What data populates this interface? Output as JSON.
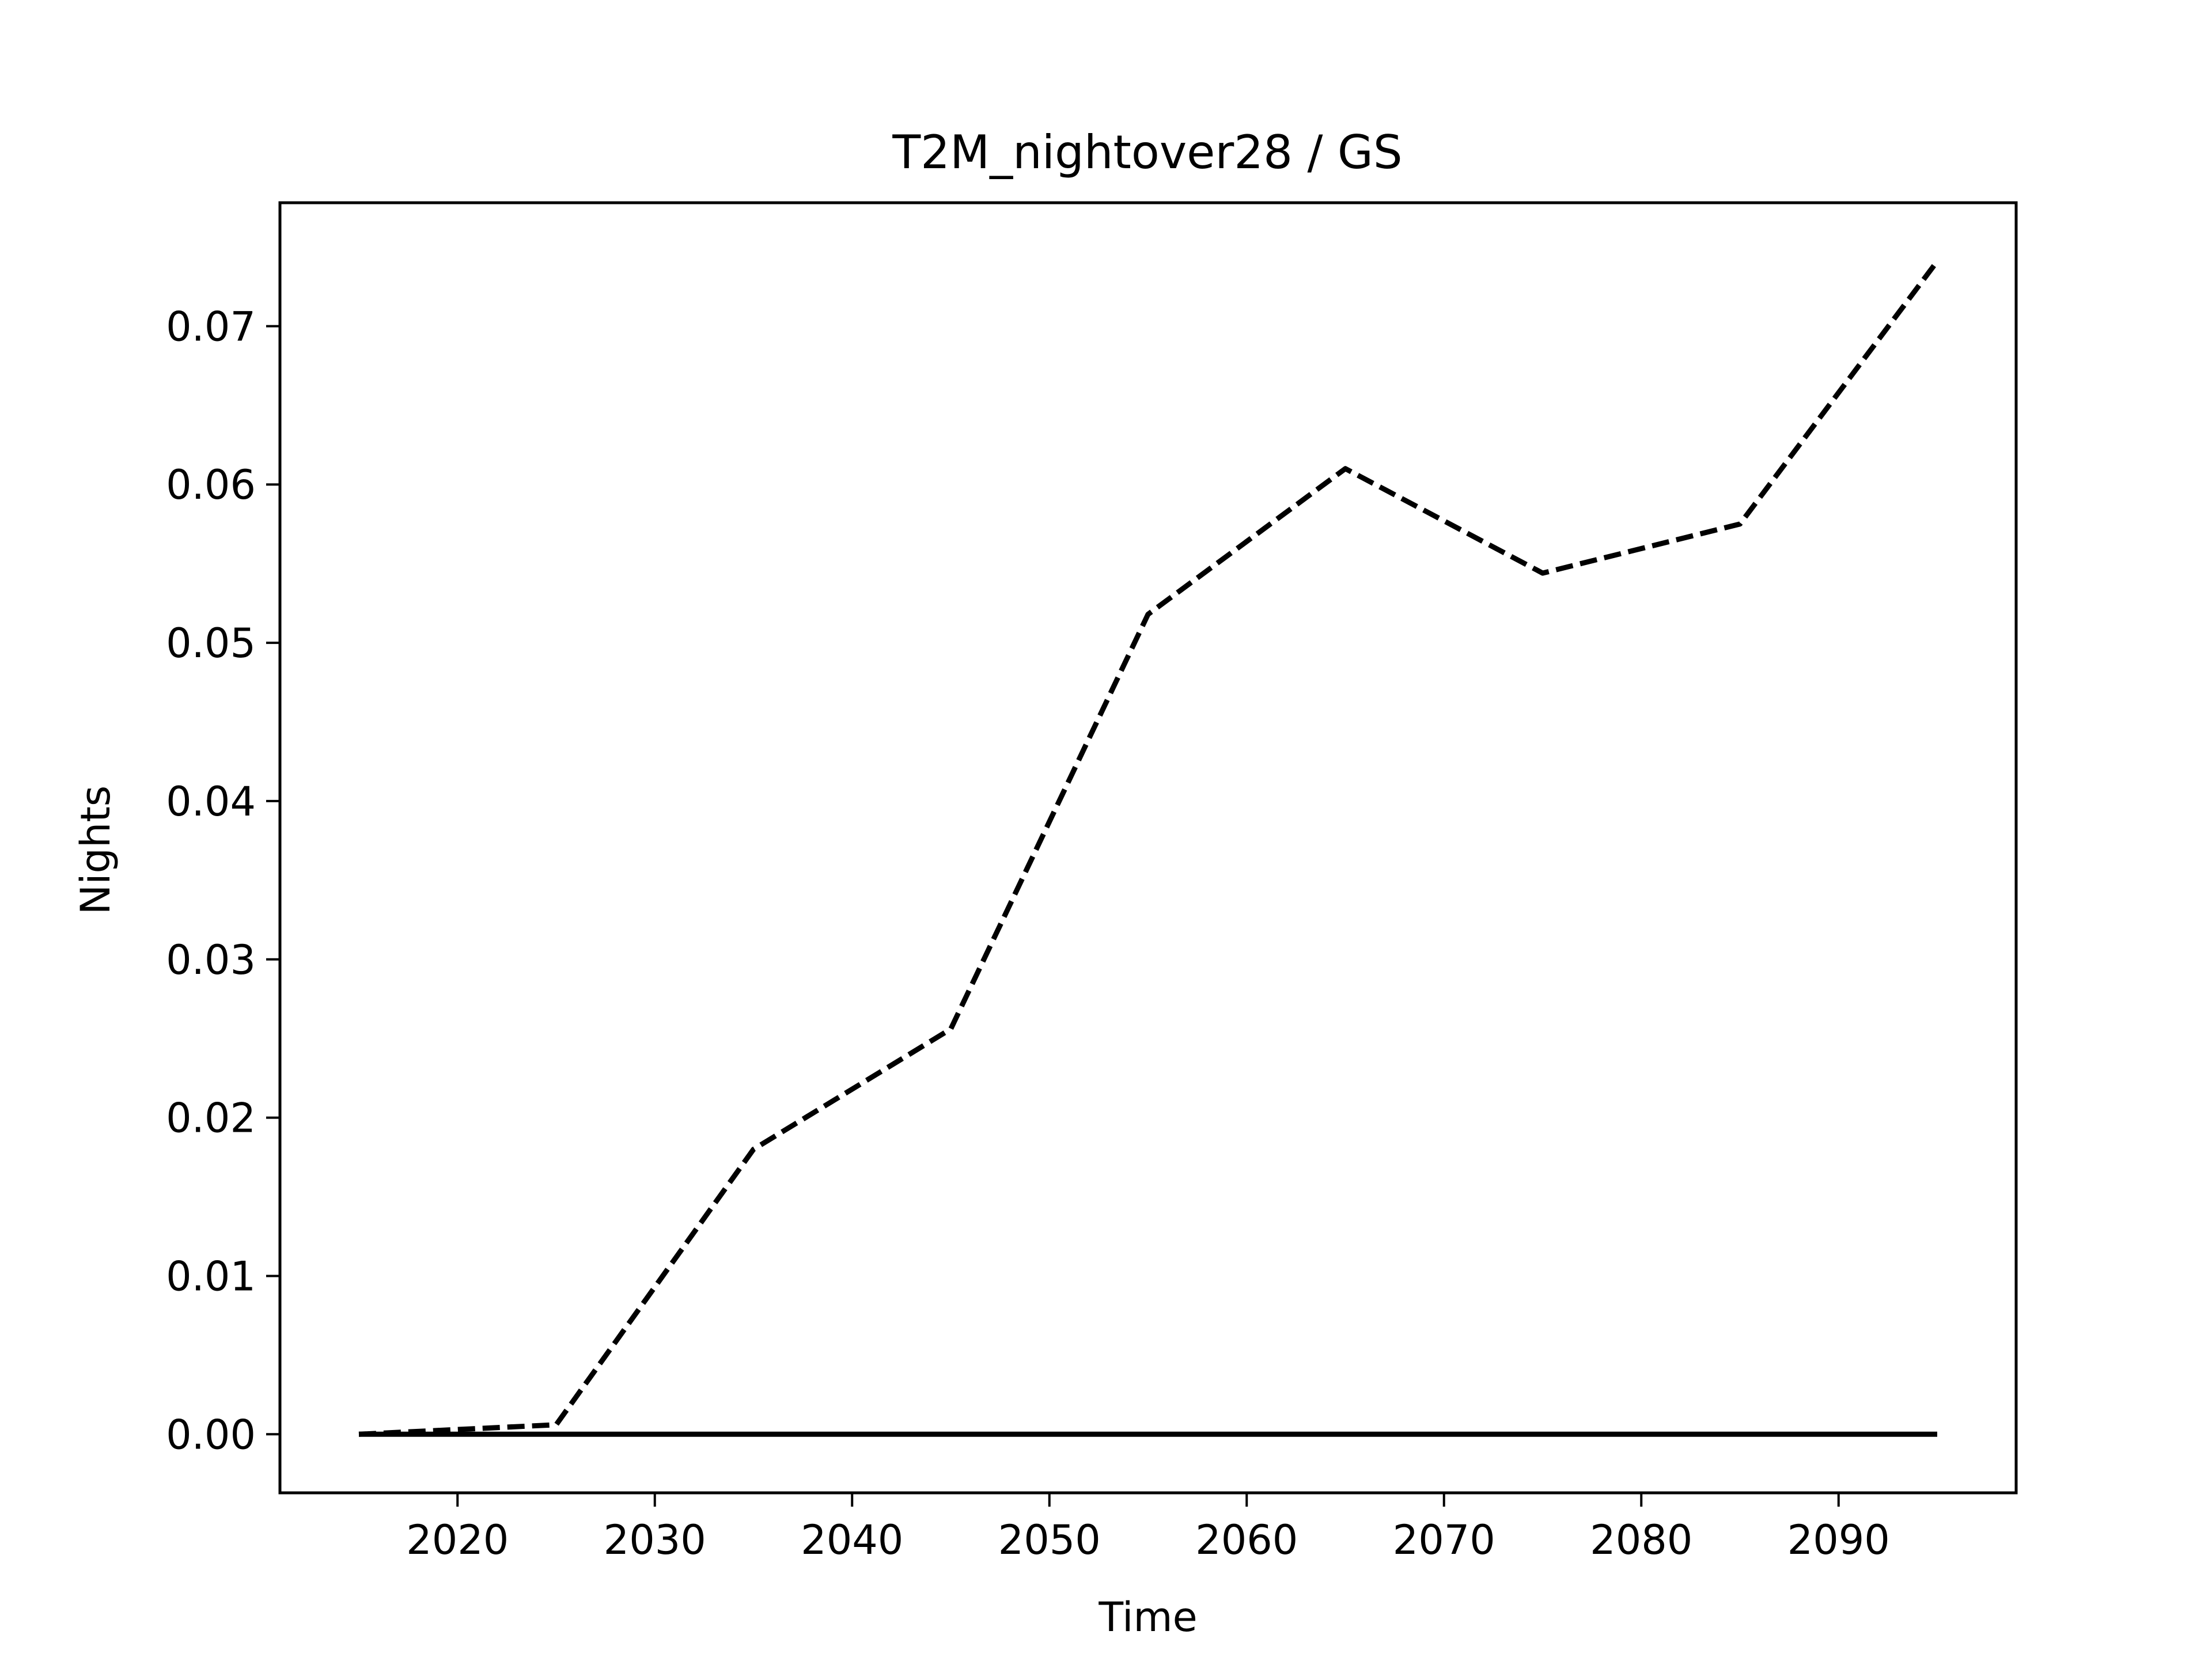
{
  "chart_data": {
    "type": "line",
    "title": "T2M_nightover28 / GS",
    "xlabel": "Time",
    "ylabel": "Nights",
    "x": [
      2015,
      2025,
      2035,
      2045,
      2055,
      2065,
      2075,
      2085,
      2095
    ],
    "series": [
      {
        "style": "dashed",
        "color": "#000000",
        "values": [
          0.0,
          0.0006,
          0.018,
          0.0256,
          0.0518,
          0.061,
          0.0544,
          0.0575,
          0.0741
        ]
      },
      {
        "style": "solid",
        "color": "#000000",
        "values": [
          0.0,
          0.0,
          0.0,
          0.0,
          0.0,
          0.0,
          0.0,
          0.0,
          0.0
        ]
      }
    ],
    "xlim": [
      2011,
      2099
    ],
    "ylim": [
      -0.0037,
      0.0778
    ],
    "xticks": [
      2020,
      2030,
      2040,
      2050,
      2060,
      2070,
      2080,
      2090
    ],
    "xtick_labels": [
      "2020",
      "2030",
      "2040",
      "2050",
      "2060",
      "2070",
      "2080",
      "2090"
    ],
    "yticks": [
      0.0,
      0.01,
      0.02,
      0.03,
      0.04,
      0.05,
      0.06,
      0.07
    ],
    "ytick_labels": [
      "0.00",
      "0.01",
      "0.02",
      "0.03",
      "0.04",
      "0.05",
      "0.06",
      "0.07"
    ],
    "grid": false,
    "legend": false
  }
}
